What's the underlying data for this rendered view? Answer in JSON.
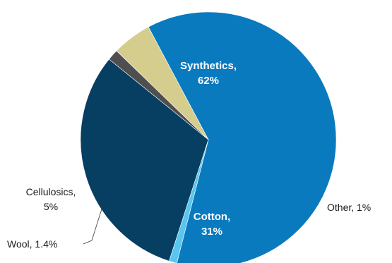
{
  "chart_data": {
    "type": "pie",
    "slices": [
      {
        "label": "Synthetics",
        "value": 62,
        "display": "62%",
        "color": "#0a7abf"
      },
      {
        "label": "Other",
        "value": 1,
        "display": "1%",
        "color": "#59c6ef"
      },
      {
        "label": "Cotton",
        "value": 31,
        "display": "31%",
        "color": "#073f62"
      },
      {
        "label": "Wool",
        "value": 1.4,
        "display": "1.4%",
        "color": "#4f4f4f"
      },
      {
        "label": "Cellulosics",
        "value": 5,
        "display": "5%",
        "color": "#d5cd8d"
      }
    ],
    "legend": "none"
  }
}
